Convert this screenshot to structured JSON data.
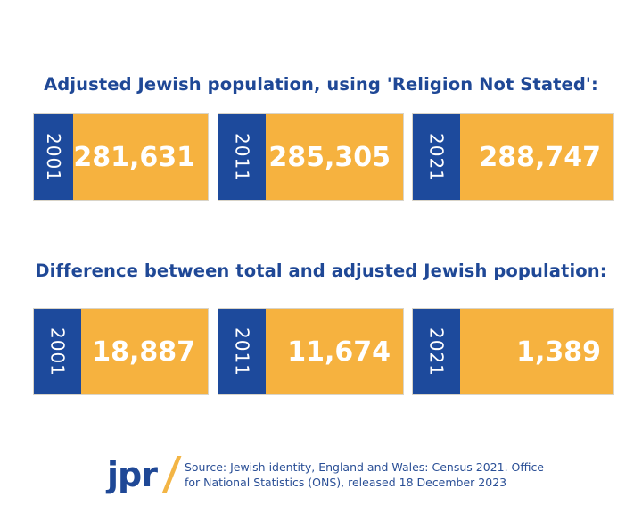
{
  "sections": [
    {
      "title": "Adjusted Jewish population, using 'Religion Not Stated':",
      "items": [
        {
          "year": "2001",
          "value": "281,631"
        },
        {
          "year": "2011",
          "value": "285,305"
        },
        {
          "year": "2021",
          "value": "288,747"
        }
      ]
    },
    {
      "title": "Difference between total and adjusted Jewish population:",
      "items": [
        {
          "year": "2001",
          "value": "18,887"
        },
        {
          "year": "2011",
          "value": "11,674"
        },
        {
          "year": "2021",
          "value": "1,389"
        }
      ]
    }
  ],
  "footer": {
    "logo": "jpr",
    "source_line1": "Source: Jewish identity, England and Wales: Census 2021. Office",
    "source_line2": "for National Statistics (ONS), released 18 December 2023"
  },
  "colors": {
    "blue": "#1d4a9c",
    "orange": "#f6b23f"
  }
}
